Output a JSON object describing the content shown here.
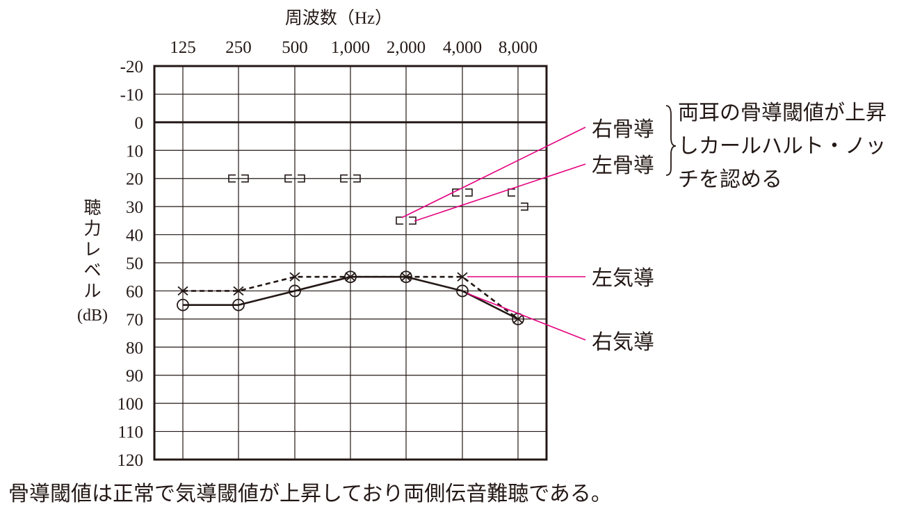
{
  "chart_data": {
    "type": "line",
    "title": "周波数（Hz）",
    "xlabel": "周波数（Hz）",
    "ylabel": "聴力レベル（dB）",
    "x_categories": [
      "125",
      "250",
      "500",
      "1,000",
      "2,000",
      "4,000",
      "8,000"
    ],
    "y_ticks": [
      -20,
      -10,
      0,
      10,
      20,
      30,
      40,
      50,
      60,
      70,
      80,
      90,
      100,
      110,
      120
    ],
    "y_axis_inverted": true,
    "ylim": [
      -20,
      120
    ],
    "grid": true,
    "series": [
      {
        "name": "右気導",
        "marker": "circle",
        "line": "solid",
        "color": "#231815",
        "values": [
          65,
          65,
          60,
          55,
          55,
          60,
          70
        ]
      },
      {
        "name": "左気導",
        "marker": "cross",
        "line": "dashed",
        "color": "#231815",
        "values": [
          60,
          60,
          55,
          55,
          55,
          55,
          70
        ]
      },
      {
        "name": "右骨導",
        "marker": "bracket-open",
        "x_index": [
          1,
          2,
          3,
          4,
          5,
          6
        ],
        "values": [
          20,
          20,
          20,
          35,
          25,
          25
        ]
      },
      {
        "name": "左骨導",
        "marker": "bracket-close",
        "x_index": [
          1,
          2,
          3,
          4,
          5,
          6
        ],
        "values": [
          20,
          20,
          20,
          35,
          25,
          30
        ]
      }
    ],
    "annotations": {
      "right_bone": "右骨導",
      "left_bone": "左骨導",
      "bone_note": [
        "両耳の骨導閾値が上昇",
        "しカールハルト・ノッ",
        "チを認める"
      ],
      "left_air": "左気導",
      "right_air": "右気導"
    },
    "caption": "骨導閾値は正常で気導閾値が上昇しており両側伝音難聴である。"
  },
  "colors": {
    "ink": "#231815",
    "label_line": "#e4007f"
  }
}
